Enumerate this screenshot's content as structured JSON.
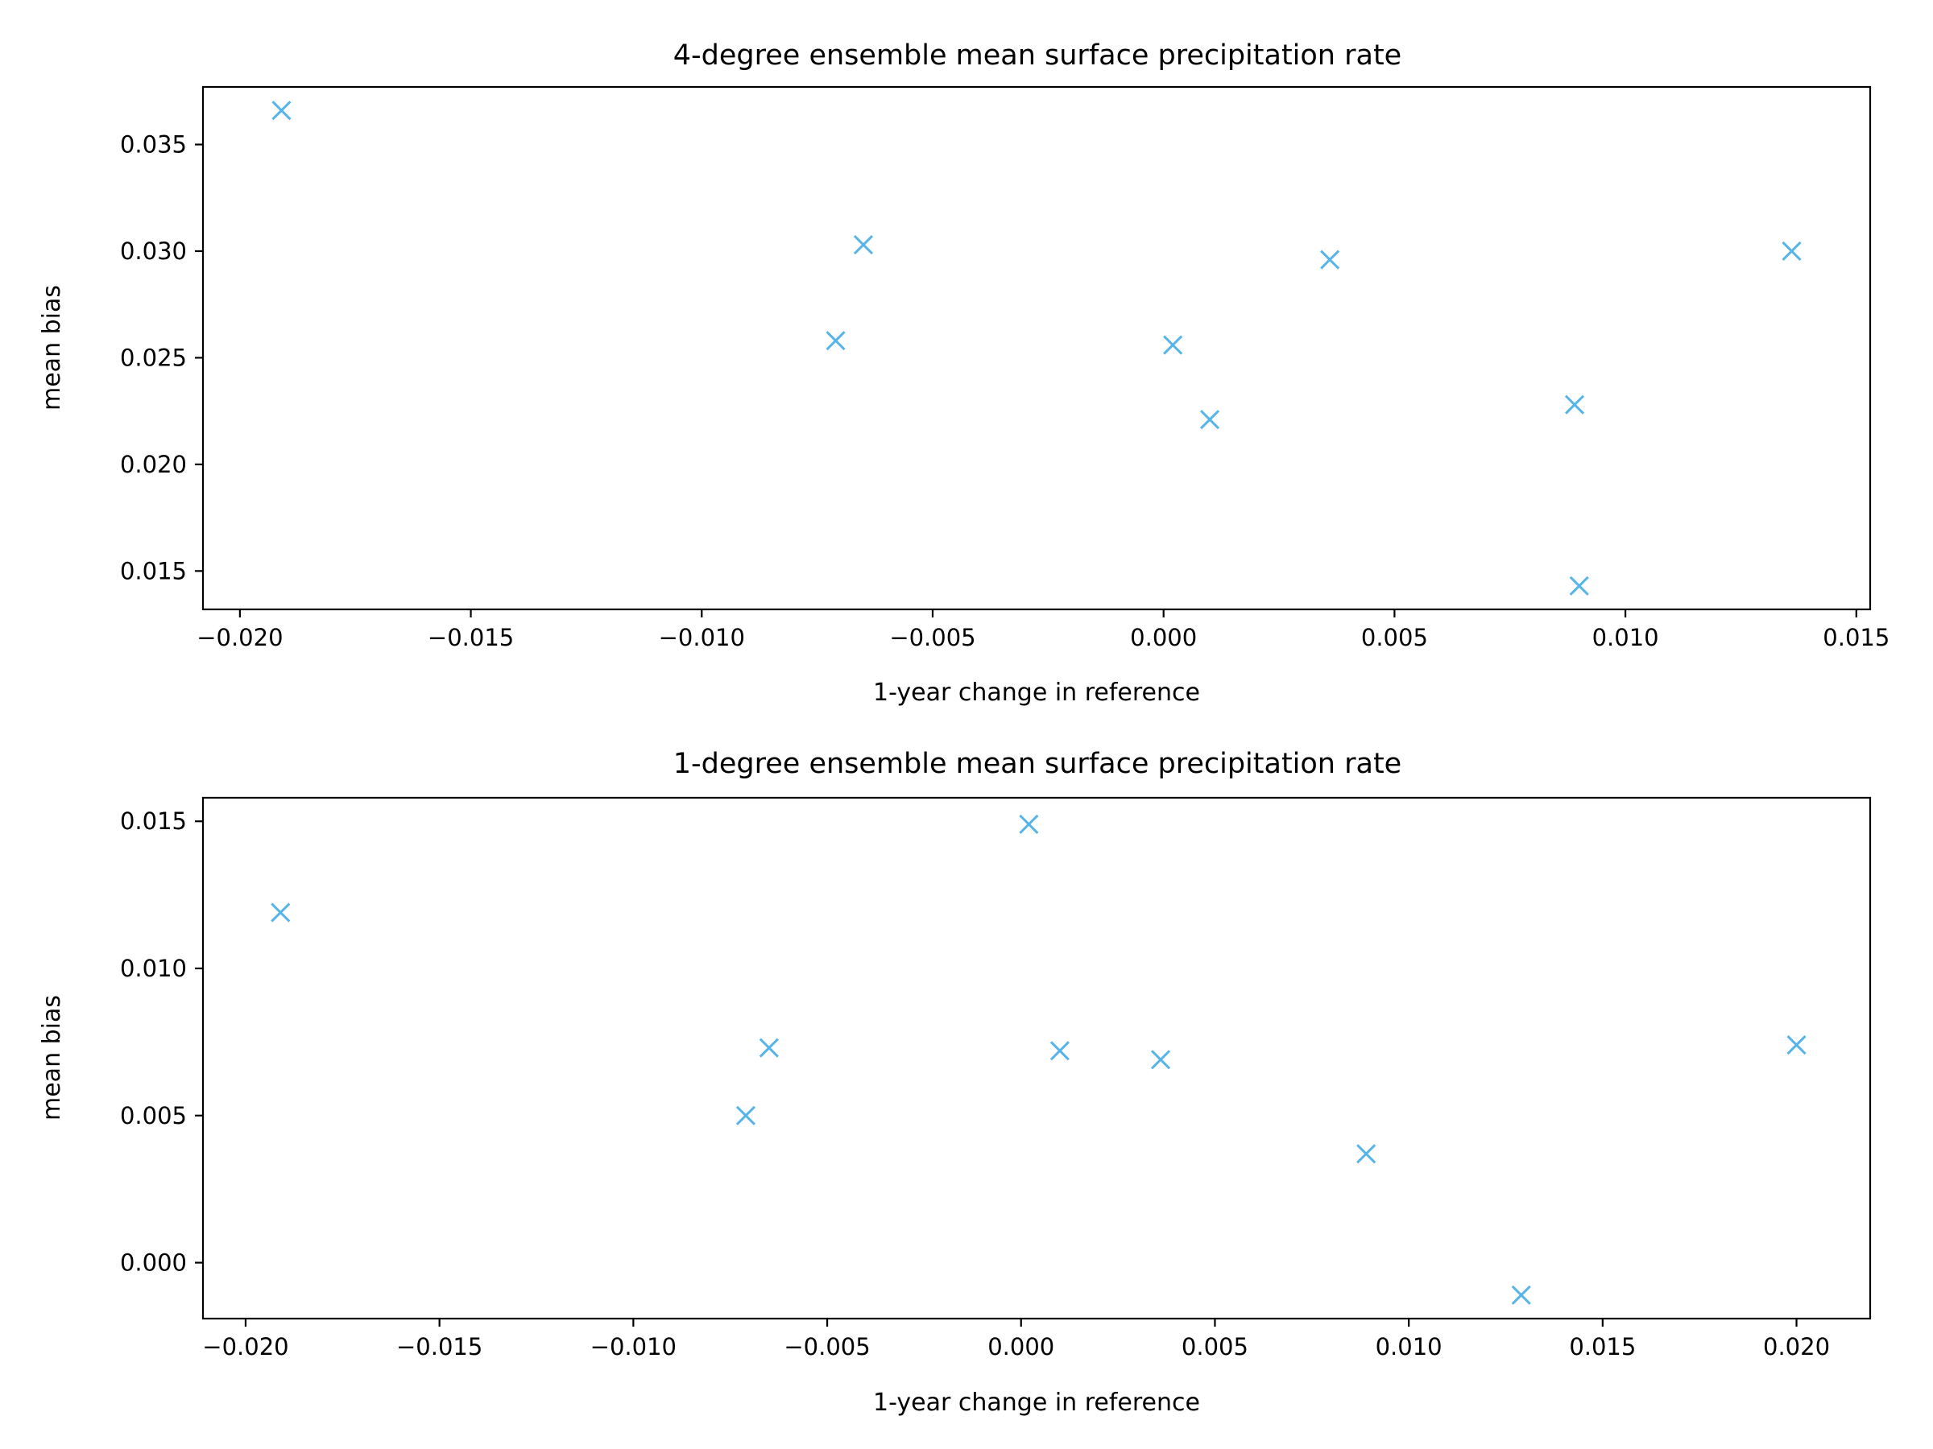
{
  "marker_color": "#56B4E9",
  "chart_data": [
    {
      "type": "scatter",
      "title": "4-degree ensemble mean surface precipitation rate",
      "xlabel": "1-year change in reference",
      "ylabel": "mean bias",
      "xlim": [
        -0.0208,
        0.0153
      ],
      "ylim": [
        0.0132,
        0.0377
      ],
      "xticks": [
        -0.02,
        -0.015,
        -0.01,
        -0.005,
        0.0,
        0.005,
        0.01,
        0.015
      ],
      "xtick_labels": [
        "−0.020",
        "−0.015",
        "−0.010",
        "−0.005",
        "0.000",
        "0.005",
        "0.010",
        "0.015"
      ],
      "yticks": [
        0.015,
        0.02,
        0.025,
        0.03,
        0.035
      ],
      "ytick_labels": [
        "0.015",
        "0.020",
        "0.025",
        "0.030",
        "0.035"
      ],
      "marker": "x",
      "points": [
        {
          "x": -0.0191,
          "y": 0.0366
        },
        {
          "x": -0.0065,
          "y": 0.0303
        },
        {
          "x": -0.0071,
          "y": 0.0258
        },
        {
          "x": 0.0002,
          "y": 0.0256
        },
        {
          "x": 0.001,
          "y": 0.0221
        },
        {
          "x": 0.0036,
          "y": 0.0296
        },
        {
          "x": 0.0089,
          "y": 0.0228
        },
        {
          "x": 0.009,
          "y": 0.0143
        },
        {
          "x": 0.0136,
          "y": 0.03
        }
      ]
    },
    {
      "type": "scatter",
      "title": "1-degree ensemble mean surface precipitation rate",
      "xlabel": "1-year change in reference",
      "ylabel": "mean bias",
      "xlim": [
        -0.0211,
        0.0219
      ],
      "ylim": [
        -0.0019,
        0.0158
      ],
      "xticks": [
        -0.02,
        -0.015,
        -0.01,
        -0.005,
        0.0,
        0.005,
        0.01,
        0.015,
        0.02
      ],
      "xtick_labels": [
        "−0.020",
        "−0.015",
        "−0.010",
        "−0.005",
        "0.000",
        "0.005",
        "0.010",
        "0.015",
        "0.020"
      ],
      "yticks": [
        0.0,
        0.005,
        0.01,
        0.015
      ],
      "ytick_labels": [
        "0.000",
        "0.005",
        "0.010",
        "0.015"
      ],
      "marker": "x",
      "points": [
        {
          "x": -0.0191,
          "y": 0.0119
        },
        {
          "x": 0.0002,
          "y": 0.0149
        },
        {
          "x": -0.0065,
          "y": 0.0073
        },
        {
          "x": -0.0071,
          "y": 0.005
        },
        {
          "x": 0.001,
          "y": 0.0072
        },
        {
          "x": 0.0036,
          "y": 0.0069
        },
        {
          "x": 0.0089,
          "y": 0.0037
        },
        {
          "x": 0.0129,
          "y": -0.0011
        },
        {
          "x": 0.02,
          "y": 0.0074
        }
      ]
    }
  ]
}
